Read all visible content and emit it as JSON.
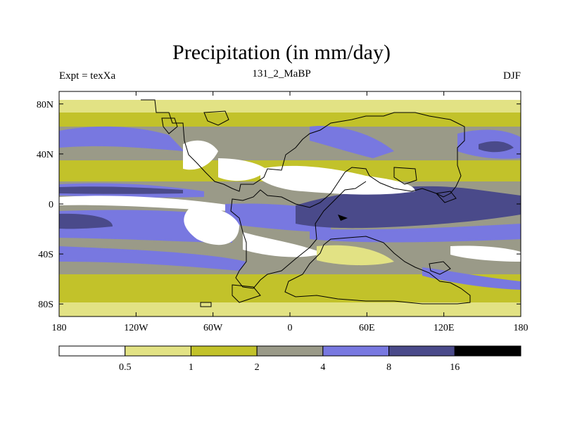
{
  "title": "Precipitation (in mm/day)",
  "experiment_label": "Expt = texXa",
  "run_label": "131_2_MaBP",
  "season_label": "DJF",
  "map": {
    "lon_ticks": [
      "180",
      "120W",
      "60W",
      "0",
      "60E",
      "120E",
      "180"
    ],
    "lat_ticks": [
      "80N",
      "40N",
      "0",
      "40S",
      "80S"
    ],
    "lon_values": [
      -180,
      -120,
      -60,
      0,
      60,
      120,
      180
    ],
    "lat_values": [
      80,
      40,
      0,
      -40,
      -80
    ],
    "lon_range": [
      -180,
      180
    ],
    "lat_range": [
      -90,
      90
    ]
  },
  "colorbar": {
    "levels": [
      "0.5",
      "1",
      "2",
      "4",
      "8",
      "16"
    ],
    "colors": [
      "#ffffff",
      "#e2e284",
      "#c2c22a",
      "#9a9a88",
      "#7878e0",
      "#4a4a8a",
      "#000000"
    ]
  }
}
